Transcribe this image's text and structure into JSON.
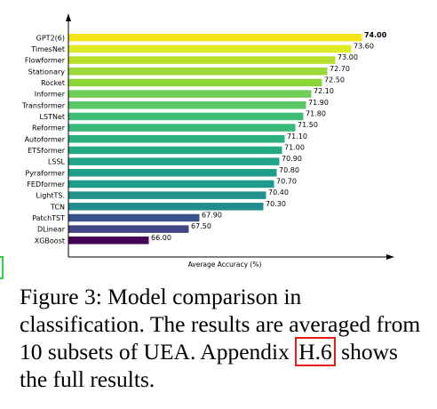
{
  "chart_data": {
    "type": "bar",
    "orientation": "horizontal",
    "categories": [
      "GPT2(6)",
      "TimesNet",
      "Flowformer",
      "Stationary",
      "Rocket",
      "Informer",
      "Transformer",
      "LSTNet",
      "Reformer",
      "Autoformer",
      "ETSformer",
      "LSSL",
      "Pyraformer",
      "FEDformer",
      "LightTS.",
      "TCN",
      "PatchTST",
      "DLinear",
      "XGBoost"
    ],
    "values": [
      74.0,
      73.6,
      73.0,
      72.7,
      72.5,
      72.1,
      71.9,
      71.8,
      71.5,
      71.1,
      71.0,
      70.9,
      70.8,
      70.7,
      70.4,
      70.3,
      67.9,
      67.5,
      66.0
    ],
    "value_labels": [
      "74.00",
      "73.60",
      "73.00",
      "72.70",
      "72.50",
      "72.10",
      "71.90",
      "71.80",
      "71.50",
      "71.10",
      "71.00",
      "70.90",
      "70.80",
      "70.70",
      "70.40",
      "70.30",
      "67.90",
      "67.50",
      "66.00"
    ],
    "colors": [
      "#f5e21a",
      "#ddea24",
      "#b6de2b",
      "#9bd93b",
      "#8ad637",
      "#6ece58",
      "#5ac864",
      "#3fbc73",
      "#37b878",
      "#2bb07f",
      "#24aa83",
      "#20a386",
      "#1f9e89",
      "#1e9a8a",
      "#20928c",
      "#218e8d",
      "#3b528b",
      "#414487",
      "#440154"
    ],
    "xlabel": "Average Accuracy (%)",
    "xlim": [
      63,
      80
    ],
    "grid": false
  },
  "caption": {
    "before_ref": "Figure 3: Model comparison in classification. The results are averaged from 10 subsets of UEA. Appendix ",
    "ref": "H.6",
    "after_ref": " shows the full results."
  }
}
